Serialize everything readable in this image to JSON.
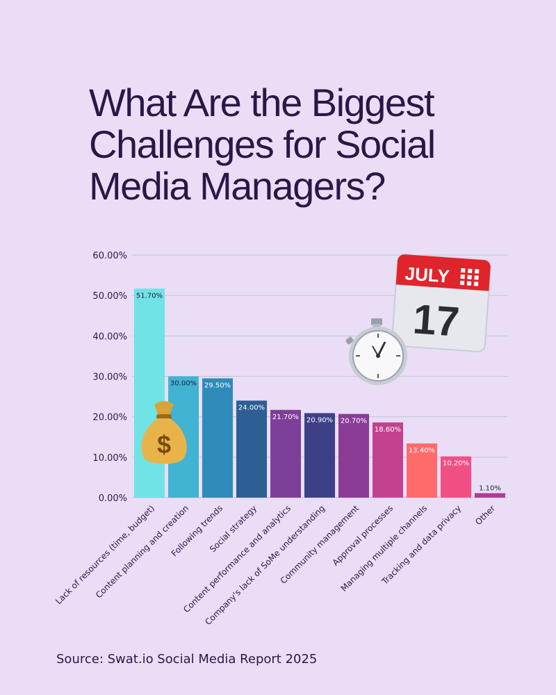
{
  "title_lines": [
    "What Are the Biggest",
    "Challenges for Social",
    "Media Managers?"
  ],
  "source": "Source: Swat.io Social Media Report 2025",
  "calendar": {
    "month": "JULY",
    "day": "17"
  },
  "icons": [
    "money-bag-icon",
    "stopwatch-icon",
    "calendar-icon"
  ],
  "chart_data": {
    "type": "bar",
    "title": "What Are the Biggest Challenges for Social Media Managers?",
    "categories": [
      "Lack of resources (time, budget)",
      "Content planning and creation",
      "Following trends",
      "Social strategy",
      "Content performance and analytics",
      "Company's lack of SoMe understanding",
      "Community management",
      "Approval processes",
      "Managing multiple channels",
      "Tracking and data privacy",
      "Other"
    ],
    "values": [
      51.7,
      30.0,
      29.5,
      24.0,
      21.7,
      20.9,
      20.7,
      18.6,
      13.4,
      10.2,
      1.1
    ],
    "value_labels": [
      "51.70%",
      "30.00%",
      "29.50%",
      "24.00%",
      "21.70%",
      "20.90%",
      "20.70%",
      "18.60%",
      "13.40%",
      "10.20%",
      "1.10%"
    ],
    "colors": [
      "#6fe3e6",
      "#41b4d4",
      "#2f8bb9",
      "#2d5e94",
      "#7e3f98",
      "#3d4087",
      "#8a3c96",
      "#c2428f",
      "#ff6b6b",
      "#f14f84",
      "#b03a97"
    ],
    "label_colors": [
      "#1e1e3a",
      "#1e1e3a",
      "#ffffff",
      "#ffffff",
      "#ffffff",
      "#ffffff",
      "#ffffff",
      "#ffffff",
      "#ffffff",
      "#ffffff",
      "#1e1e3a"
    ],
    "y_ticks": [
      "0.00%",
      "10.00%",
      "20.00%",
      "30.00%",
      "40.00%",
      "50.00%",
      "60.00%"
    ],
    "ylim": [
      0,
      60
    ],
    "xlabel": "",
    "ylabel": "",
    "grid": true
  }
}
